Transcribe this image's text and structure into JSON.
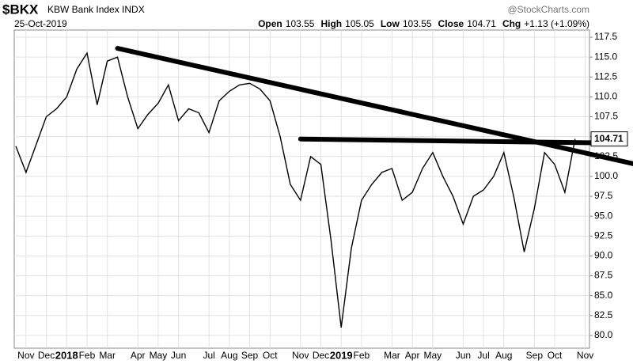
{
  "chart_data": {
    "type": "line",
    "title": "$BKX",
    "subtitle": "KBW Bank Index INDX",
    "source": "@StockCharts.com",
    "date": "25-Oct-2019",
    "ohlc": [
      {
        "label": "Open",
        "value": 103.55
      },
      {
        "label": "High",
        "value": 105.05
      },
      {
        "label": "Low",
        "value": 103.55
      },
      {
        "label": "Close",
        "value": 104.71
      },
      {
        "label": "Chg",
        "value": "+1.13 (+1.09%)"
      }
    ],
    "categories": [
      null,
      "Nov",
      null,
      "Dec",
      null,
      "2018",
      null,
      "Feb",
      null,
      "Mar",
      null,
      null,
      "Apr",
      null,
      "May",
      null,
      "Jun",
      null,
      null,
      "Jul",
      null,
      "Aug",
      null,
      "Sep",
      null,
      "Oct",
      null,
      null,
      "Nov",
      null,
      "Dec",
      null,
      "2019",
      null,
      "Feb",
      null,
      null,
      "Mar",
      null,
      "Apr",
      null,
      "May",
      null,
      null,
      "Jun",
      null,
      "Jul",
      null,
      "Aug",
      null,
      null,
      "Sep",
      null,
      "Oct",
      null,
      null,
      "Nov"
    ],
    "series": [
      {
        "name": "$BKX",
        "color": "#000000",
        "values": [
          103.8,
          100.5,
          104,
          107.5,
          108.5,
          110,
          113.5,
          115.5,
          109,
          114.5,
          115,
          110,
          106,
          107.8,
          109.2,
          111.5,
          107,
          108.5,
          108,
          105.5,
          109.5,
          110.7,
          111.5,
          111.7,
          111,
          109.5,
          105,
          99,
          97,
          102.5,
          101.5,
          92,
          81,
          91,
          97,
          99,
          100.5,
          101,
          97,
          98,
          101,
          103,
          100,
          97.5,
          94,
          97.5,
          98.3,
          100,
          103,
          97.3,
          90.5,
          96,
          103,
          101.5,
          98,
          104.71,
          null
        ]
      }
    ],
    "trendlines": [
      {
        "x": [
          10,
          60.7
        ],
        "y": [
          116.1,
          101.6
        ]
      },
      {
        "x": [
          28,
          58
        ],
        "y": [
          104.7,
          104.2
        ]
      }
    ],
    "ylim": [
      78.4,
      118.4
    ],
    "yticks": [
      {
        "value": 80,
        "label": "80.0"
      },
      82.5,
      {
        "value": 85,
        "label": "85.0"
      },
      87.5,
      {
        "value": 90,
        "label": "90.0"
      },
      92.5,
      {
        "value": 95,
        "label": "95.0"
      },
      97.5,
      {
        "value": 100,
        "label": "100.0"
      },
      102.5,
      {
        "value": 105,
        "label": "105.0"
      },
      107.5,
      {
        "value": 110,
        "label": "110.0"
      },
      112.5,
      {
        "value": 115,
        "label": "115.0"
      },
      117.5
    ],
    "grid": true
  }
}
